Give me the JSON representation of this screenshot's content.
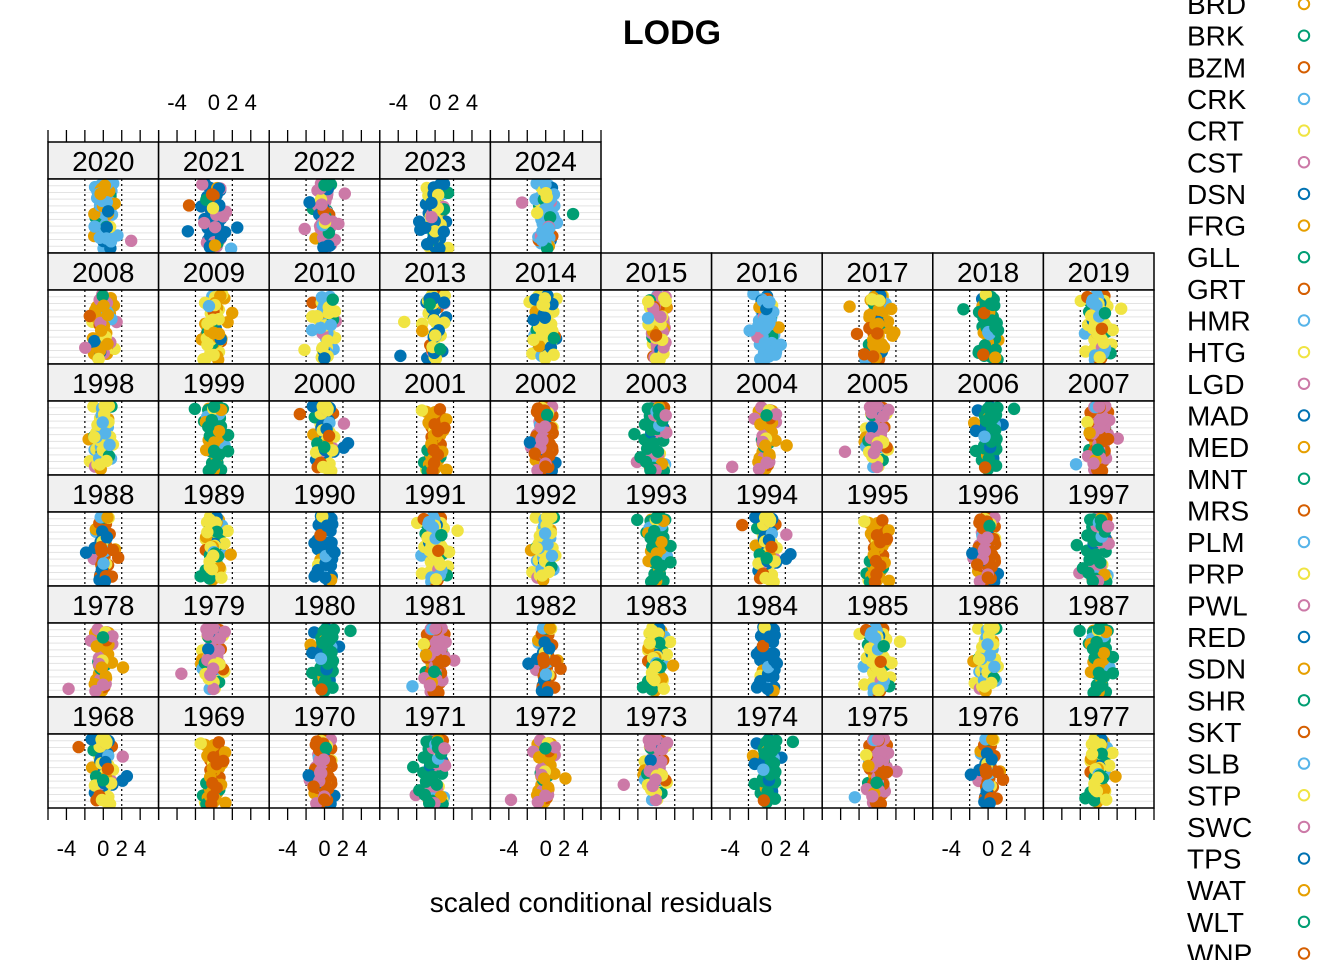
{
  "chart_data": {
    "type": "scatter",
    "title": "LODG",
    "xlabel": "scaled conditional residuals",
    "ylabel": "",
    "xlim": [
      -6,
      6
    ],
    "x_ticks": [
      "-4",
      "0",
      "2",
      "4"
    ],
    "x_tick_values": [
      -4,
      0,
      2,
      4
    ],
    "reference_lines": [
      -2,
      2
    ],
    "grid": true,
    "legend_placement": "right",
    "panel_rows": [
      [
        "2020",
        "2021",
        "2022",
        "2023",
        "2024"
      ],
      [
        "2008",
        "2009",
        "2010",
        "2013",
        "2014",
        "2015",
        "2016",
        "2017",
        "2018",
        "2019"
      ],
      [
        "1998",
        "1999",
        "2000",
        "2001",
        "2002",
        "2003",
        "2004",
        "2005",
        "2006",
        "2007"
      ],
      [
        "1988",
        "1989",
        "1990",
        "1991",
        "1992",
        "1993",
        "1994",
        "1995",
        "1996",
        "1997"
      ],
      [
        "1978",
        "1979",
        "1980",
        "1981",
        "1982",
        "1983",
        "1984",
        "1985",
        "1986",
        "1987"
      ],
      [
        "1968",
        "1969",
        "1970",
        "1971",
        "1972",
        "1973",
        "1974",
        "1975",
        "1976",
        "1977"
      ]
    ],
    "legend": [
      {
        "name": "BRD",
        "color": "#E69F00"
      },
      {
        "name": "BRK",
        "color": "#009E73"
      },
      {
        "name": "BZM",
        "color": "#D55E00"
      },
      {
        "name": "CRK",
        "color": "#56B4E9"
      },
      {
        "name": "CRT",
        "color": "#F0E442"
      },
      {
        "name": "CST",
        "color": "#CC79A7"
      },
      {
        "name": "DSN",
        "color": "#0072B2"
      },
      {
        "name": "FRG",
        "color": "#E69F00"
      },
      {
        "name": "GLL",
        "color": "#009E73"
      },
      {
        "name": "GRT",
        "color": "#D55E00"
      },
      {
        "name": "HMR",
        "color": "#56B4E9"
      },
      {
        "name": "HTG",
        "color": "#F0E442"
      },
      {
        "name": "LGD",
        "color": "#CC79A7"
      },
      {
        "name": "MAD",
        "color": "#0072B2"
      },
      {
        "name": "MED",
        "color": "#E69F00"
      },
      {
        "name": "MNT",
        "color": "#009E73"
      },
      {
        "name": "MRS",
        "color": "#D55E00"
      },
      {
        "name": "PLM",
        "color": "#56B4E9"
      },
      {
        "name": "PRP",
        "color": "#F0E442"
      },
      {
        "name": "PWL",
        "color": "#CC79A7"
      },
      {
        "name": "RED",
        "color": "#0072B2"
      },
      {
        "name": "SDN",
        "color": "#E69F00"
      },
      {
        "name": "SHR",
        "color": "#009E73"
      },
      {
        "name": "SKT",
        "color": "#D55E00"
      },
      {
        "name": "SLB",
        "color": "#56B4E9"
      },
      {
        "name": "STP",
        "color": "#F0E442"
      },
      {
        "name": "SWC",
        "color": "#CC79A7"
      },
      {
        "name": "TPS",
        "color": "#0072B2"
      },
      {
        "name": "WAT",
        "color": "#E69F00"
      },
      {
        "name": "WLT",
        "color": "#009E73"
      },
      {
        "name": "WNP",
        "color": "#D55E00"
      }
    ]
  }
}
